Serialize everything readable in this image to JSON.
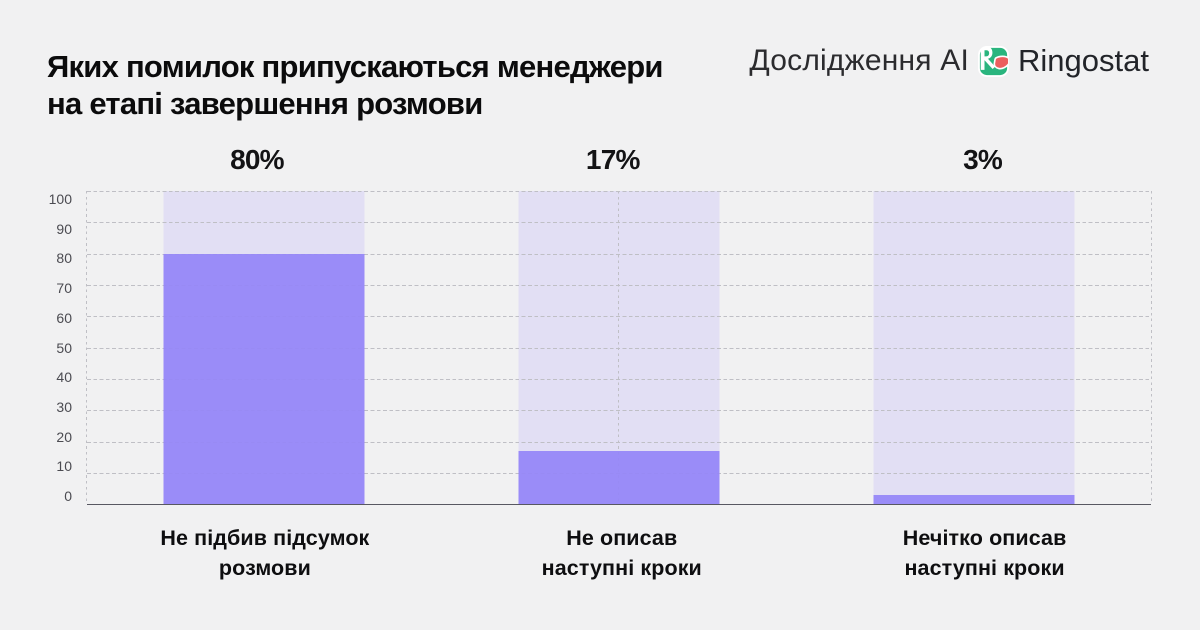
{
  "header": {
    "title": "Яких помилок припускаються менеджери на етапі завершення розмови",
    "title_lines": [
      "Яких помилок припускаються менеджери",
      "на етапі завершення розмови"
    ],
    "brand": {
      "study_label": "Дослідження AI",
      "name": "Ringostat",
      "logo_icon": "ringostat-rs-mark"
    }
  },
  "chart_data": {
    "type": "bar",
    "title": "Яких помилок припускаються менеджери на етапі завершення розмови",
    "categories": [
      "Не підбив підсумок розмови",
      "Не описав наступні кроки",
      "Нечітко описав наступні кроки"
    ],
    "category_lines": [
      [
        "Не підбив підсумок",
        "розмови"
      ],
      [
        "Не описав",
        "наступні кроки"
      ],
      [
        "Нечітко описав",
        "наступні кроки"
      ]
    ],
    "values": [
      80,
      17,
      3
    ],
    "value_labels": [
      "80%",
      "17%",
      "3%"
    ],
    "xlabel": "",
    "ylabel": "",
    "ylim": [
      0,
      100
    ],
    "yticks": [
      0,
      10,
      20,
      30,
      40,
      50,
      60,
      70,
      80,
      90,
      100
    ],
    "grid": "dashed horizontal gridlines, dashed vertical lines at plot left/center/right, solid baseline",
    "legend": "none",
    "bar_background": "each bar has a full-height light track up to 100"
  },
  "colors": {
    "background": "#f1f1f2",
    "bar_fill": "#9a8df6",
    "bar_track": "#e2dff4",
    "gridline": "#bfbfc5",
    "baseline": "#585862",
    "title_text": "#0b0b0c",
    "tick_text": "#4b4b51",
    "logo_green": "#2ab57e",
    "logo_red": "#ec5f5f"
  }
}
